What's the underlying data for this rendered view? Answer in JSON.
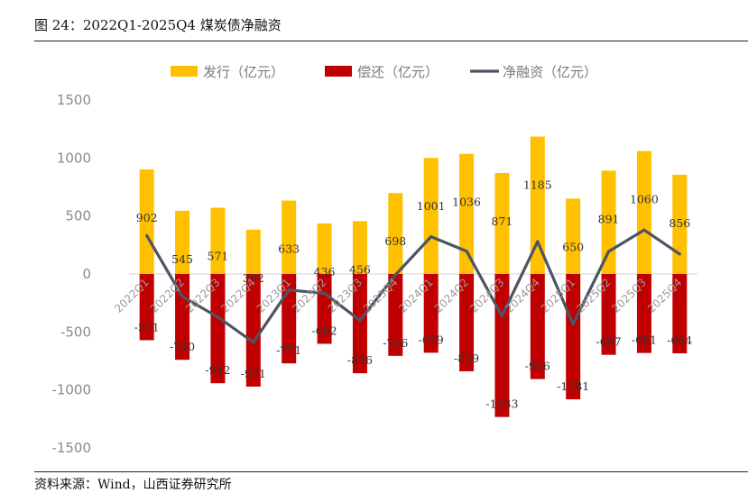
{
  "figure": {
    "title": "图 24：2022Q1-2025Q4 煤炭债净融资",
    "source": "资料来源：Wind，山西证券研究所"
  },
  "colors": {
    "issuance": "#FFC000",
    "repayment": "#C00000",
    "net": "#4D5562"
  },
  "chart_data": {
    "type": "bar",
    "title": "2022Q1-2025Q4 煤炭债净融资",
    "categories": [
      "2022Q1",
      "2022Q2",
      "2022Q3",
      "2022Q4",
      "2023Q1",
      "2023Q2",
      "2023Q3",
      "2023Q4",
      "2024Q1",
      "2024Q2",
      "2024Q3",
      "2024Q4",
      "2025Q1",
      "2025Q2",
      "2025Q3",
      "2025Q4"
    ],
    "series": [
      {
        "name": "发行（亿元）",
        "kind": "bar",
        "values": [
          902,
          545,
          571,
          382,
          633,
          436,
          456,
          698,
          1001,
          1036,
          871,
          1185,
          650,
          891,
          1060,
          856
        ]
      },
      {
        "name": "偿还（亿元）",
        "kind": "bar",
        "values": [
          -571,
          -740,
          -942,
          -971,
          -771,
          -602,
          -856,
          -706,
          -679,
          -839,
          -1233,
          -906,
          -1081,
          -697,
          -681,
          -684
        ]
      },
      {
        "name": "净融资（亿元）",
        "kind": "line",
        "values": [
          331,
          -195,
          -371,
          -589,
          -138,
          -166,
          -400,
          -8,
          322,
          197,
          -362,
          279,
          -431,
          194,
          379,
          172
        ]
      }
    ],
    "ylim": [
      -1500,
      1500
    ],
    "yticks": [
      1500,
      1000,
      500,
      0,
      -500,
      -1000,
      -1500
    ],
    "xlabel": "",
    "ylabel": "",
    "legend": [
      "发行（亿元）",
      "偿还（亿元）",
      "净融资（亿元）"
    ],
    "legend_position": "top"
  }
}
